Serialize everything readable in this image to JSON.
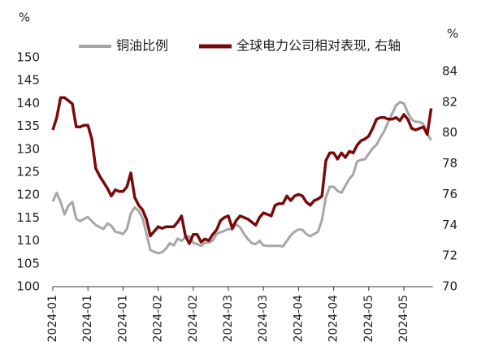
{
  "chart_data": {
    "type": "line",
    "y_unit_label": "%",
    "y2_unit_label": "%",
    "legend": "top",
    "categories": [
      "2024-01",
      null,
      null,
      null,
      null,
      null,
      null,
      null,
      null,
      "2024-01",
      null,
      null,
      null,
      null,
      null,
      null,
      null,
      null,
      "2024-01",
      null,
      null,
      null,
      null,
      null,
      null,
      null,
      null,
      "2024-02",
      null,
      null,
      null,
      null,
      null,
      null,
      null,
      null,
      "2024-02",
      null,
      null,
      null,
      null,
      null,
      null,
      null,
      null,
      "2024-03",
      null,
      null,
      null,
      null,
      null,
      null,
      null,
      null,
      "2024-03",
      null,
      null,
      null,
      null,
      null,
      null,
      null,
      null,
      "2024-04",
      null,
      null,
      null,
      null,
      null,
      null,
      null,
      null,
      "2024-04",
      null,
      null,
      null,
      null,
      null,
      null,
      null,
      null,
      "2024-05",
      null,
      null,
      null,
      null,
      null,
      null,
      null,
      null,
      "2024-05",
      null,
      null,
      null,
      null,
      null,
      null,
      null
    ],
    "series": [
      {
        "name": "铜油比例",
        "color": "#a6a6a6",
        "axis": "y",
        "values": [
          118.6,
          120.5,
          118.5,
          115.8,
          117.7,
          118.5,
          114.8,
          114.3,
          114.8,
          115.2,
          114.3,
          113.5,
          113.0,
          112.6,
          113.8,
          113.3,
          112.0,
          111.8,
          111.5,
          112.6,
          116.0,
          117.3,
          116.5,
          115.0,
          111.6,
          108.0,
          107.6,
          107.3,
          107.5,
          108.3,
          109.5,
          109.0,
          110.5,
          110.0,
          110.8,
          111.0,
          109.6,
          109.3,
          108.9,
          109.6,
          109.6,
          110.1,
          111.5,
          111.9,
          112.2,
          112.6,
          112.4,
          113.6,
          113.0,
          111.5,
          110.4,
          109.5,
          109.3,
          110.0,
          109.0,
          108.9,
          108.9,
          108.9,
          108.9,
          108.8,
          110.0,
          111.2,
          112.0,
          112.5,
          112.4,
          111.5,
          111.0,
          111.5,
          112.0,
          114.6,
          119.5,
          121.8,
          121.8,
          120.9,
          120.5,
          122.0,
          123.5,
          124.5,
          127.3,
          127.7,
          127.8,
          129.0,
          130.2,
          131.0,
          132.6,
          134.0,
          136.0,
          137.8,
          139.6,
          140.3,
          140.0,
          138.0,
          136.5,
          136.0,
          136.0,
          135.5,
          133.3,
          132.0
        ]
      },
      {
        "name": "全球电力公司相对表现, 右轴",
        "color": "#7a0a0a",
        "axis": "y2",
        "values": [
          80.2,
          81.0,
          82.3,
          82.3,
          82.1,
          81.9,
          80.4,
          80.4,
          80.5,
          80.5,
          79.6,
          77.7,
          77.2,
          76.8,
          76.4,
          75.9,
          76.3,
          76.2,
          76.2,
          76.5,
          77.4,
          75.8,
          75.3,
          75.0,
          74.4,
          73.3,
          73.6,
          73.9,
          73.8,
          73.9,
          73.9,
          73.9,
          74.2,
          74.6,
          73.3,
          72.8,
          73.4,
          73.4,
          72.9,
          73.1,
          73.0,
          73.4,
          73.7,
          74.3,
          74.5,
          74.6,
          73.8,
          74.3,
          74.6,
          74.5,
          74.4,
          74.2,
          74.0,
          74.5,
          74.8,
          74.7,
          74.6,
          75.3,
          75.4,
          75.4,
          75.9,
          75.6,
          75.9,
          76.0,
          75.9,
          75.5,
          75.3,
          75.6,
          75.7,
          75.9,
          78.2,
          78.7,
          78.7,
          78.3,
          78.7,
          78.4,
          78.8,
          78.7,
          79.2,
          79.5,
          79.6,
          79.8,
          80.3,
          80.9,
          81.0,
          81.0,
          80.9,
          80.9,
          81.0,
          80.8,
          81.2,
          80.9,
          80.3,
          80.2,
          80.3,
          80.4,
          79.9,
          81.6
        ]
      }
    ],
    "ylim": [
      100,
      150
    ],
    "yticks": [
      100,
      105,
      110,
      115,
      120,
      125,
      130,
      135,
      140,
      145,
      150
    ],
    "y2lim": [
      70,
      84.9
    ],
    "y2ticks": [
      70,
      72,
      74,
      76,
      78,
      80,
      82,
      84
    ]
  }
}
